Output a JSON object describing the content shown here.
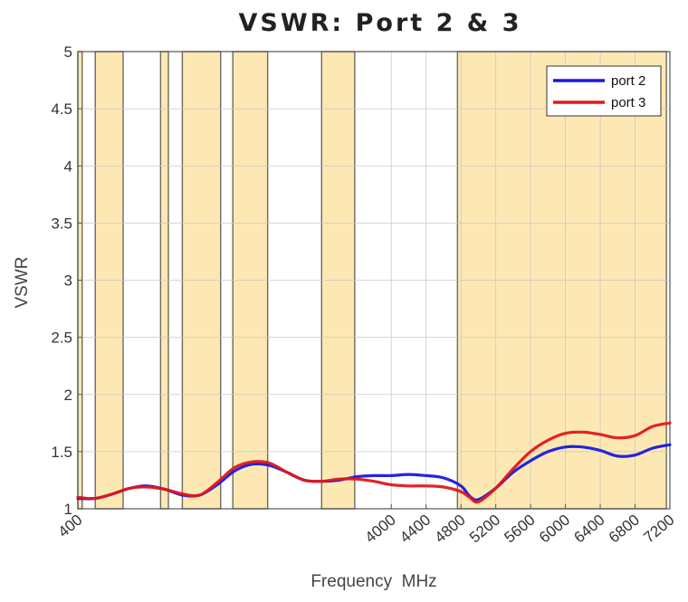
{
  "chart_data": {
    "type": "line",
    "title": "VSWR: Port 2 & 3",
    "xlabel": "Frequency  MHz",
    "ylabel": "VSWR",
    "xlim": [
      400,
      7200
    ],
    "ylim": [
      1,
      5
    ],
    "yticks": [
      {
        "value": 1,
        "label": "1"
      },
      {
        "value": 1.5,
        "label": "1.5"
      },
      {
        "value": 2,
        "label": "2"
      },
      {
        "value": 2.5,
        "label": "2.5"
      },
      {
        "value": 3,
        "label": "3"
      },
      {
        "value": 3.5,
        "label": "3.5"
      },
      {
        "value": 4,
        "label": "4"
      },
      {
        "value": 4.5,
        "label": "4.5"
      },
      {
        "value": 5,
        "label": "5"
      }
    ],
    "xticks": [
      {
        "value": 400,
        "label": "400"
      },
      {
        "value": 4000,
        "label": "4000"
      },
      {
        "value": 4400,
        "label": "4400"
      },
      {
        "value": 4800,
        "label": "4800"
      },
      {
        "value": 5200,
        "label": "5200"
      },
      {
        "value": 5600,
        "label": "5600"
      },
      {
        "value": 6000,
        "label": "6000"
      },
      {
        "value": 6400,
        "label": "6400"
      },
      {
        "value": 6800,
        "label": "6800"
      },
      {
        "value": 7200,
        "label": "7200"
      }
    ],
    "grid": true,
    "legend_position": "top-right",
    "colors": {
      "band": "#fde8b4",
      "band_edge": "#6e6a5a",
      "port2": "#1818e0",
      "port3": "#e01818"
    },
    "highlight_bands": [
      [
        400,
        450
      ],
      [
        600,
        920
      ],
      [
        1350,
        1440
      ],
      [
        1600,
        2040
      ],
      [
        2180,
        2580
      ],
      [
        3200,
        3580
      ],
      [
        4760,
        7160
      ]
    ],
    "series": [
      {
        "name": "port 2",
        "x": [
          400,
          600,
          800,
          1000,
          1200,
          1400,
          1600,
          1800,
          2000,
          2200,
          2400,
          2600,
          2800,
          3000,
          3200,
          3400,
          3600,
          3800,
          4000,
          4200,
          4400,
          4600,
          4800,
          4900,
          5000,
          5200,
          5400,
          5600,
          5800,
          6000,
          6200,
          6400,
          6600,
          6800,
          7000,
          7200
        ],
        "y": [
          1.09,
          1.09,
          1.13,
          1.18,
          1.2,
          1.17,
          1.12,
          1.12,
          1.21,
          1.33,
          1.39,
          1.38,
          1.32,
          1.25,
          1.24,
          1.25,
          1.28,
          1.29,
          1.29,
          1.3,
          1.29,
          1.27,
          1.2,
          1.11,
          1.08,
          1.18,
          1.32,
          1.42,
          1.5,
          1.54,
          1.54,
          1.51,
          1.46,
          1.47,
          1.53,
          1.56
        ]
      },
      {
        "name": "port 3",
        "x": [
          400,
          600,
          800,
          1000,
          1200,
          1400,
          1600,
          1800,
          2000,
          2200,
          2400,
          2600,
          2800,
          3000,
          3200,
          3400,
          3600,
          3800,
          4000,
          4200,
          4400,
          4600,
          4800,
          4900,
          5000,
          5200,
          5400,
          5600,
          5800,
          6000,
          6200,
          6400,
          6600,
          6800,
          7000,
          7200
        ],
        "y": [
          1.1,
          1.09,
          1.13,
          1.18,
          1.19,
          1.17,
          1.13,
          1.12,
          1.23,
          1.36,
          1.41,
          1.4,
          1.32,
          1.25,
          1.24,
          1.26,
          1.26,
          1.24,
          1.21,
          1.2,
          1.2,
          1.19,
          1.15,
          1.1,
          1.06,
          1.18,
          1.35,
          1.5,
          1.6,
          1.66,
          1.67,
          1.65,
          1.62,
          1.64,
          1.72,
          1.75
        ]
      }
    ]
  }
}
